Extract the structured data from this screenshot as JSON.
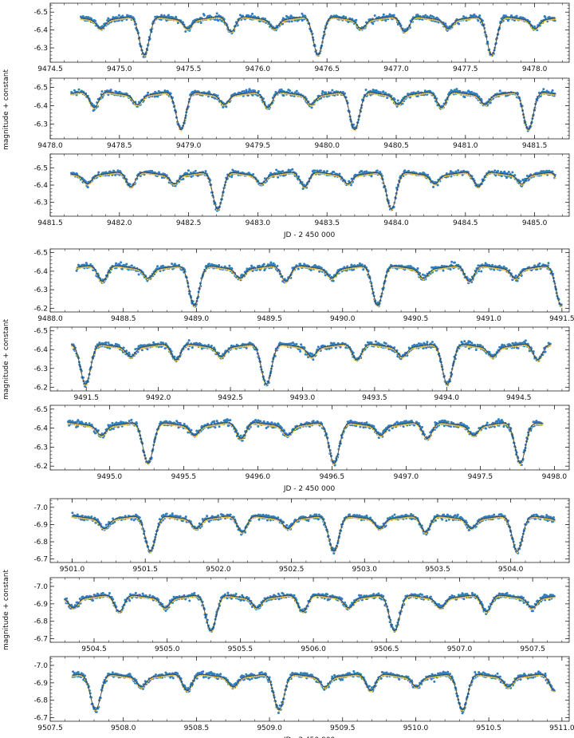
{
  "figure": {
    "ylabel": "magnitude + constant",
    "xlabel": "JD - 2 450 000",
    "colors": {
      "observed": "#2f7fc1",
      "model": "#f2c94c",
      "fit_line": "#3a3a3a"
    }
  },
  "chart_data": [
    {
      "type": "scatter",
      "group": 0,
      "xlim": [
        9474.5,
        9478.25
      ],
      "ylim": [
        -6.55,
        -6.22
      ],
      "xticks": [
        9474.5,
        9475.0,
        9475.5,
        9476.0,
        9476.5,
        9477.0,
        9477.5,
        9478.0
      ],
      "xticklabels": [
        "9474.5",
        "9475.0",
        "9475.5",
        "9476.0",
        "9476.5",
        "9477.0",
        "9477.5",
        "9478.0"
      ],
      "yticks": [
        -6.5,
        -6.4,
        -6.3
      ],
      "yticklabels": [
        "-6.5",
        "-6.4",
        "-6.3"
      ],
      "data_range": [
        9474.72,
        9478.15
      ],
      "baseline": -6.48,
      "primary_depth": 0.22,
      "secondary_depth": 0.09
    },
    {
      "type": "scatter",
      "group": 0,
      "xlim": [
        9478.0,
        9481.75
      ],
      "ylim": [
        -6.55,
        -6.22
      ],
      "xticks": [
        9478.0,
        9478.5,
        9479.0,
        9479.5,
        9480.0,
        9480.5,
        9481.0,
        9481.5
      ],
      "xticklabels": [
        "9478.0",
        "9478.5",
        "9479.0",
        "9479.5",
        "9480.0",
        "9480.5",
        "9481.0",
        "9481.5"
      ],
      "yticks": [
        -6.5,
        -6.4,
        -6.3
      ],
      "yticklabels": [
        "-6.5",
        "-6.4",
        "-6.3"
      ],
      "data_range": [
        9478.15,
        9481.65
      ],
      "baseline": -6.48,
      "primary_depth": 0.21,
      "secondary_depth": 0.09
    },
    {
      "type": "scatter",
      "group": 0,
      "xlim": [
        9481.5,
        9485.25
      ],
      "ylim": [
        -6.58,
        -6.22
      ],
      "xticks": [
        9481.5,
        9482.0,
        9482.5,
        9483.0,
        9483.5,
        9484.0,
        9484.5,
        9485.0
      ],
      "xticklabels": [
        "9481.5",
        "9482.0",
        "9482.5",
        "9483.0",
        "9483.5",
        "9484.0",
        "9484.5",
        "9485.0"
      ],
      "yticks": [
        -6.5,
        -6.4,
        -6.3
      ],
      "yticklabels": [
        "-6.5",
        "-6.4",
        "-6.3"
      ],
      "data_range": [
        9481.65,
        9485.15
      ],
      "baseline": -6.48,
      "primary_depth": 0.22,
      "secondary_depth": 0.09
    },
    {
      "type": "scatter",
      "group": 1,
      "xlim": [
        9488.0,
        9491.55
      ],
      "ylim": [
        -6.52,
        -6.18
      ],
      "xticks": [
        9488.0,
        9488.5,
        9489.0,
        9489.5,
        9490.0,
        9490.5,
        9491.0,
        9491.5
      ],
      "xticklabels": [
        "9488.0",
        "9488.5",
        "9489.0",
        "9489.5",
        "9490.0",
        "9490.5",
        "9491.0",
        "9491.5"
      ],
      "yticks": [
        -6.5,
        -6.4,
        -6.3,
        -6.2
      ],
      "yticklabels": [
        "-6.5",
        "-6.4",
        "-6.3",
        "-6.2"
      ],
      "data_range": [
        9488.18,
        9491.5
      ],
      "baseline": -6.435,
      "primary_depth": 0.22,
      "secondary_depth": 0.09
    },
    {
      "type": "scatter",
      "group": 1,
      "xlim": [
        9491.25,
        9494.85
      ],
      "ylim": [
        -6.52,
        -6.18
      ],
      "xticks": [
        9491.5,
        9492.0,
        9492.5,
        9493.0,
        9493.5,
        9494.0,
        9494.5
      ],
      "xticklabels": [
        "9491.5",
        "9492.0",
        "9492.5",
        "9493.0",
        "9493.5",
        "9494.0",
        "9494.5"
      ],
      "yticks": [
        -6.5,
        -6.4,
        -6.3,
        -6.2
      ],
      "yticklabels": [
        "-6.5",
        "-6.4",
        "-6.3",
        "-6.2"
      ],
      "data_range": [
        9491.4,
        9494.72
      ],
      "baseline": -6.435,
      "primary_depth": 0.22,
      "secondary_depth": 0.09
    },
    {
      "type": "scatter",
      "group": 1,
      "xlim": [
        9494.6,
        9498.1
      ],
      "ylim": [
        -6.52,
        -6.18
      ],
      "xticks": [
        9495.0,
        9495.5,
        9496.0,
        9496.5,
        9497.0,
        9497.5,
        9498.0
      ],
      "xticklabels": [
        "9495.0",
        "9495.5",
        "9496.0",
        "9496.5",
        "9497.0",
        "9497.5",
        "9498.0"
      ],
      "yticks": [
        -6.5,
        -6.4,
        -6.3,
        -6.2
      ],
      "yticklabels": [
        "-6.5",
        "-6.4",
        "-6.3",
        "-6.2"
      ],
      "data_range": [
        9494.72,
        9497.92
      ],
      "baseline": -6.435,
      "primary_depth": 0.22,
      "secondary_depth": 0.09
    },
    {
      "type": "scatter",
      "group": 2,
      "xlim": [
        9500.85,
        9504.4
      ],
      "ylim": [
        -7.05,
        -6.68
      ],
      "xticks": [
        9501.0,
        9501.5,
        9502.0,
        9502.5,
        9503.0,
        9503.5,
        9504.0
      ],
      "xticklabels": [
        "9501.0",
        "9501.5",
        "9502.0",
        "9502.5",
        "9503.0",
        "9503.5",
        "9504.0"
      ],
      "yticks": [
        -7.0,
        -6.9,
        -6.8,
        -6.7
      ],
      "yticklabels": [
        "-7.0",
        "-6.9",
        "-6.8",
        "-6.7"
      ],
      "data_range": [
        9501.0,
        9504.3
      ],
      "baseline": -6.955,
      "primary_depth": 0.21,
      "secondary_depth": 0.1
    },
    {
      "type": "scatter",
      "group": 2,
      "xlim": [
        9504.2,
        9507.75
      ],
      "ylim": [
        -7.05,
        -6.68
      ],
      "xticks": [
        9504.5,
        9505.0,
        9505.5,
        9506.0,
        9506.5,
        9507.0,
        9507.5
      ],
      "xticklabels": [
        "9504.5",
        "9505.0",
        "9505.5",
        "9506.0",
        "9506.5",
        "9507.0",
        "9507.5"
      ],
      "yticks": [
        -7.0,
        -6.9,
        -6.8,
        -6.7
      ],
      "yticklabels": [
        "-7.0",
        "-6.9",
        "-6.8",
        "-6.7"
      ],
      "data_range": [
        9504.3,
        9507.65
      ],
      "baseline": -6.955,
      "primary_depth": 0.21,
      "secondary_depth": 0.1
    },
    {
      "type": "scatter",
      "group": 2,
      "xlim": [
        9507.5,
        9511.05
      ],
      "ylim": [
        -7.05,
        -6.68
      ],
      "xticks": [
        9507.5,
        9508.0,
        9508.5,
        9509.0,
        9509.5,
        9510.0,
        9510.5,
        9511.0
      ],
      "xticklabels": [
        "9507.5",
        "9508.0",
        "9508.5",
        "9509.0",
        "9509.5",
        "9510.0",
        "9510.5",
        "9511.0"
      ],
      "yticks": [
        -7.0,
        -6.9,
        -6.8,
        -6.7
      ],
      "yticklabels": [
        "-7.0",
        "-6.9",
        "-6.8",
        "-6.7"
      ],
      "data_range": [
        9507.65,
        9510.95
      ],
      "baseline": -6.955,
      "primary_depth": 0.21,
      "secondary_depth": 0.1
    }
  ]
}
